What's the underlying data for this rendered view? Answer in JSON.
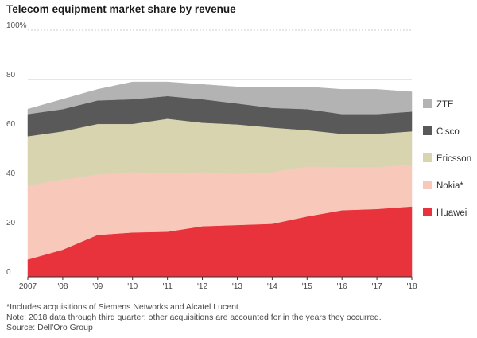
{
  "title": "Telecom equipment market share by revenue",
  "notes": [
    "*Includes acquisitions of Siemens Networks and Alcatel Lucent",
    "Note: 2018 data through third quarter; other acquisitions are accounted for in the years they occurred.",
    "Source: Dell'Oro Group"
  ],
  "chart_data": {
    "type": "area",
    "stacked": true,
    "title": "Telecom equipment market share by revenue",
    "xlabel": "",
    "ylabel": "",
    "x": [
      "2007",
      "'08",
      "'09",
      "'10",
      "'11",
      "'12",
      "'13",
      "'14",
      "'15",
      "'16",
      "'17",
      "'18"
    ],
    "yticks": [
      "0",
      "20",
      "40",
      "60",
      "80",
      "100%"
    ],
    "ylim": [
      0,
      100
    ],
    "grid": true,
    "legend_placement": "right",
    "series": [
      {
        "name": "Huawei",
        "color": "#e8323c",
        "values": [
          7,
          11,
          17,
          18,
          18.3,
          20.5,
          21,
          21.5,
          24.5,
          27,
          27.5,
          28.5
        ]
      },
      {
        "name": "Nokia*",
        "color": "#f8c9bb",
        "values": [
          30,
          28.5,
          24.5,
          24.5,
          23.8,
          22,
          20.8,
          21,
          20.2,
          17.5,
          17,
          17
        ]
      },
      {
        "name": "Ericsson",
        "color": "#d9d4b0",
        "values": [
          20,
          19.5,
          20.5,
          19.5,
          22,
          20,
          20,
          18,
          14.8,
          13.5,
          13.5,
          13.5
        ]
      },
      {
        "name": "Cisco",
        "color": "#595959",
        "values": [
          9,
          9,
          9.5,
          10,
          9.2,
          9.5,
          8.5,
          8,
          8.5,
          8,
          8,
          8
        ]
      },
      {
        "name": "ZTE",
        "color": "#b3b3b3",
        "values": [
          2,
          4,
          4.5,
          7,
          5.7,
          6,
          6.7,
          8.5,
          9,
          10,
          10,
          8
        ]
      }
    ]
  }
}
